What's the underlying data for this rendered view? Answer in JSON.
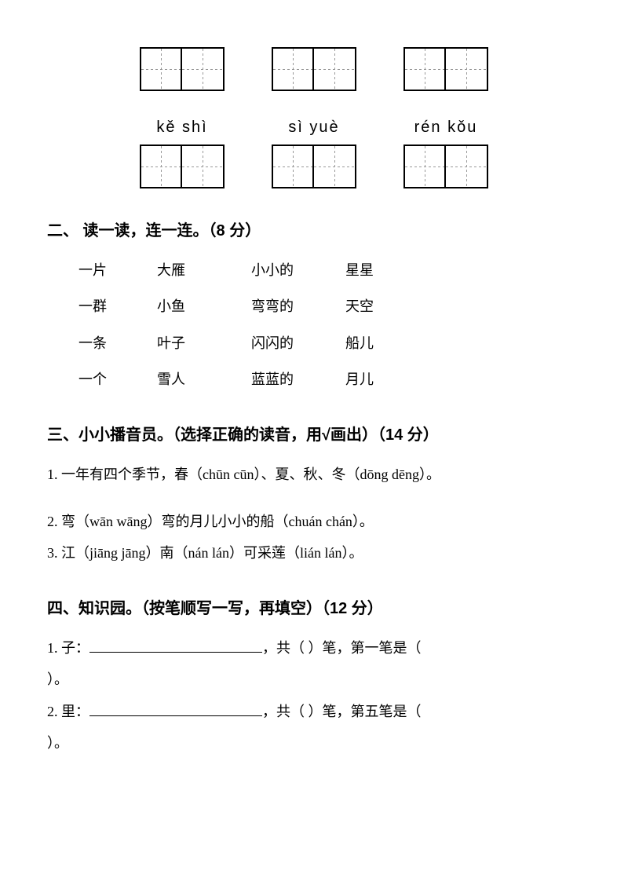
{
  "background_color": "#ffffff",
  "text_color": "#000000",
  "grid": {
    "row1": [
      {
        "pinyin": ""
      },
      {
        "pinyin": ""
      },
      {
        "pinyin": ""
      }
    ],
    "row2": [
      {
        "pinyin": "kě  shì"
      },
      {
        "pinyin": "sì  yuè"
      },
      {
        "pinyin": "rén kǒu"
      }
    ]
  },
  "section2": {
    "title": "二、 读一读，连一连。（8 分）",
    "rows": [
      [
        "一片",
        "大雁",
        "小小的",
        "星星"
      ],
      [
        "一群",
        "小鱼",
        "弯弯的",
        "天空"
      ],
      [
        "一条",
        "叶子",
        "闪闪的",
        "船儿"
      ],
      [
        "一个",
        "雪人",
        "蓝蓝的",
        "月儿"
      ]
    ]
  },
  "section3": {
    "title": "三、小小播音员。（选择正确的读音，用√画出）（14 分）",
    "items": [
      "1. 一年有四个季节，春（chūn    cūn）、夏、秋、冬（dōng   dēng）。",
      "2. 弯（wān   wāng）弯的月儿小小的船（chuán   chán）。",
      "3. 江（jiāng   jāng）南（nán   lán）可采莲（lián   lán）。"
    ]
  },
  "section4": {
    "title": "四、知识园。（按笔顺写一写，再填空）（12 分）",
    "items": [
      {
        "prefix": "1. 子：",
        "mid": "，共（        ）笔，第一笔是（",
        "suffix": "）。"
      },
      {
        "prefix": "2. 里：",
        "mid": "，共（        ）笔，第五笔是（",
        "suffix": "）。"
      }
    ]
  }
}
